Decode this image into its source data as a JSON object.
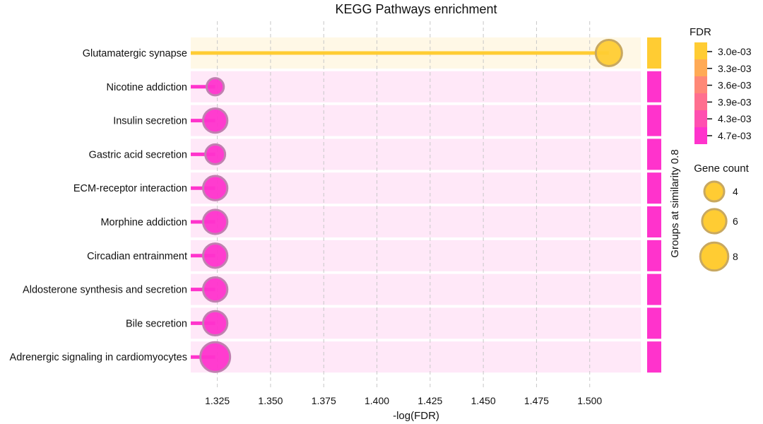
{
  "chart_data": {
    "type": "lollipop",
    "title": "KEGG Pathways enrichment",
    "xlabel": "-log(FDR)",
    "ylabel": "",
    "xlim": [
      1.3125,
      1.524
    ],
    "xticks": [
      "1.325",
      "1.350",
      "1.375",
      "1.400",
      "1.425",
      "1.450",
      "1.475",
      "1.500"
    ],
    "grid": "vertical-dashed",
    "group_axis_label": "Groups at similarity 0.8",
    "categories": [
      "Glutamatergic synapse",
      "Nicotine addiction",
      "Insulin secretion",
      "Gastric acid secretion",
      "ECM-receptor interaction",
      "Morphine addiction",
      "Circadian entrainment",
      "Aldosterone synthesis and secretion",
      "Bile secretion",
      "Adrenergic signaling in cardiomyocytes"
    ],
    "values": [
      1.509,
      1.324,
      1.324,
      1.324,
      1.324,
      1.324,
      1.324,
      1.324,
      1.324,
      1.324
    ],
    "gene_counts": [
      7,
      3,
      6,
      4,
      6,
      6,
      6,
      6,
      6,
      9
    ],
    "group_colors": [
      "#ffcc33",
      "#ff33cc",
      "#ff33cc",
      "#ff33cc",
      "#ff33cc",
      "#ff33cc",
      "#ff33cc",
      "#ff33cc",
      "#ff33cc",
      "#ff33cc"
    ],
    "band_colors": [
      "#fff8e6",
      "#ffe8f8",
      "#ffe8f8",
      "#ffe8f8",
      "#ffe8f8",
      "#ffe8f8",
      "#ffe8f8",
      "#ffe8f8",
      "#ffe8f8",
      "#ffe8f8"
    ],
    "fdr_legend": {
      "title": "FDR",
      "labels": [
        "3.0e-03",
        "3.3e-03",
        "3.6e-03",
        "3.9e-03",
        "4.3e-03",
        "4.7e-03"
      ],
      "colors": [
        "#ffcc33",
        "#ffaa55",
        "#ff8877",
        "#ff6f8f",
        "#ff50b0",
        "#ff33cc"
      ]
    },
    "size_legend": {
      "title": "Gene count",
      "labels": [
        "4",
        "6",
        "8"
      ],
      "values": [
        4,
        6,
        8
      ]
    },
    "marker_edge_color": "#c8a860"
  }
}
